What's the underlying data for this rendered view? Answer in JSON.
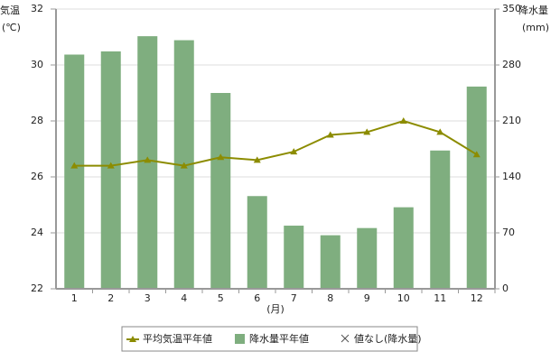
{
  "chart_data": {
    "type": "combo",
    "ylabel": "気温",
    "yunit": "(℃)",
    "y2label": "降水量",
    "y2unit": "(mm)",
    "xlabel": "(月)",
    "categories": [
      "1",
      "2",
      "3",
      "4",
      "5",
      "6",
      "7",
      "8",
      "9",
      "10",
      "11",
      "12"
    ],
    "series": [
      {
        "name": "平均気温平年値",
        "type": "line",
        "color": "#8c8c00",
        "values": [
          26.4,
          26.4,
          26.6,
          26.4,
          26.7,
          26.6,
          26.9,
          27.5,
          27.6,
          28.0,
          27.6,
          26.8
        ]
      },
      {
        "name": "降水量平年値",
        "type": "bar",
        "axis": "y2",
        "color": "#7fae7f",
        "values": [
          293,
          297,
          316,
          311,
          245,
          116,
          79,
          67,
          76,
          102,
          173,
          253
        ]
      }
    ],
    "missing_note": "値なし(降水量)",
    "ylim": [
      22,
      32
    ],
    "yticks": [
      22,
      24,
      26,
      28,
      30,
      32
    ],
    "y2lim": [
      0,
      350
    ],
    "y2ticks": [
      0,
      70,
      140,
      210,
      280,
      350
    ],
    "grid": true
  }
}
